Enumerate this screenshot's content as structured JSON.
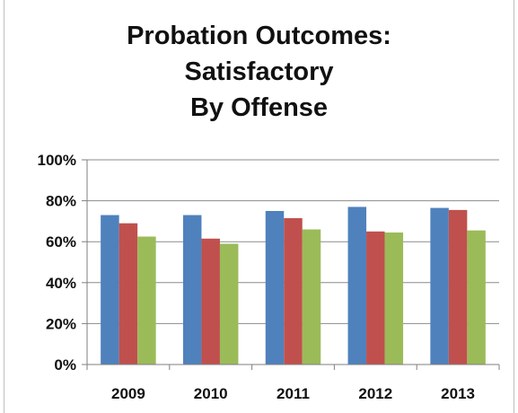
{
  "chart_data": {
    "type": "bar",
    "title": [
      "Probation Outcomes:",
      "Satisfactory",
      "By Offense"
    ],
    "xlabel": "",
    "ylabel": "",
    "categories": [
      "2009",
      "2010",
      "2011",
      "2012",
      "2013"
    ],
    "series": [
      {
        "color": "#4f81bd",
        "values": [
          73,
          73,
          75,
          77,
          76.5
        ]
      },
      {
        "color": "#c0504d",
        "values": [
          69,
          61.5,
          71.5,
          65,
          75.5
        ]
      },
      {
        "color": "#9bbb59",
        "values": [
          62.5,
          59,
          66,
          64.5,
          65.5
        ]
      }
    ],
    "ylim": [
      0,
      100
    ],
    "yticks": [
      0,
      20,
      40,
      60,
      80,
      100
    ],
    "ytick_labels": [
      "0%",
      "20%",
      "40%",
      "60%",
      "80%",
      "100%"
    ],
    "grid": true,
    "legend": "none"
  }
}
